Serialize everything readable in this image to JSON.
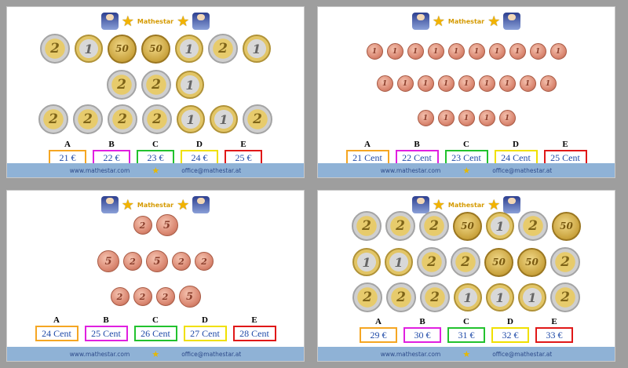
{
  "brand": "Mathestar",
  "footer": {
    "left": "www.mathestar.com",
    "right": "office@mathestar.at"
  },
  "colors": {
    "A": "#f5a623",
    "B": "#e020e0",
    "C": "#22c22e",
    "D": "#f0e000",
    "E": "#e01818",
    "footer": "#8fb2d6",
    "answer_text": "#1f4aa8"
  },
  "panels": [
    {
      "rows": [
        [
          {
            "t": "2"
          },
          {
            "t": "1"
          },
          {
            "t": "50"
          },
          {
            "t": "50"
          },
          {
            "t": "1"
          },
          {
            "t": "2"
          },
          {
            "t": "1"
          }
        ],
        [
          {
            "t": "2"
          },
          {
            "t": "2"
          },
          {
            "t": "1"
          }
        ],
        [
          {
            "t": "2"
          },
          {
            "t": "2"
          },
          {
            "t": "2"
          },
          {
            "t": "2"
          },
          {
            "t": "1"
          },
          {
            "t": "1"
          },
          {
            "t": "2"
          }
        ]
      ],
      "answers": [
        {
          "letter": "A",
          "value": "21 €"
        },
        {
          "letter": "B",
          "value": "22 €"
        },
        {
          "letter": "C",
          "value": "23 €"
        },
        {
          "letter": "D",
          "value": "24 €"
        },
        {
          "letter": "E",
          "value": "25 €"
        }
      ]
    },
    {
      "rows": [
        [
          {
            "t": "cu1"
          },
          {
            "t": "cu1"
          },
          {
            "t": "cu1"
          },
          {
            "t": "cu1"
          },
          {
            "t": "cu1"
          },
          {
            "t": "cu1"
          },
          {
            "t": "cu1"
          },
          {
            "t": "cu1"
          },
          {
            "t": "cu1"
          },
          {
            "t": "cu1"
          }
        ],
        [
          {
            "t": "cu1"
          },
          {
            "t": "cu1"
          },
          {
            "t": "cu1"
          },
          {
            "t": "cu1"
          },
          {
            "t": "cu1"
          },
          {
            "t": "cu1"
          },
          {
            "t": "cu1"
          },
          {
            "t": "cu1"
          },
          {
            "t": "cu1"
          }
        ],
        [
          {
            "t": "cu1"
          },
          {
            "t": "cu1"
          },
          {
            "t": "cu1"
          },
          {
            "t": "cu1"
          },
          {
            "t": "cu1"
          }
        ]
      ],
      "answers": [
        {
          "letter": "A",
          "value": "21 Cent"
        },
        {
          "letter": "B",
          "value": "22 Cent"
        },
        {
          "letter": "C",
          "value": "23 Cent"
        },
        {
          "letter": "D",
          "value": "24 Cent"
        },
        {
          "letter": "E",
          "value": "25 Cent"
        }
      ]
    },
    {
      "rows": [
        [
          {
            "t": "cu2"
          },
          {
            "t": "cu5"
          }
        ],
        [
          {
            "t": "cu5"
          },
          {
            "t": "cu2"
          },
          {
            "t": "cu5"
          },
          {
            "t": "cu2"
          },
          {
            "t": "cu2"
          }
        ],
        [
          {
            "t": "cu2"
          },
          {
            "t": "cu2"
          },
          {
            "t": "cu2"
          },
          {
            "t": "cu5"
          }
        ]
      ],
      "answers": [
        {
          "letter": "A",
          "value": "24 Cent"
        },
        {
          "letter": "B",
          "value": "25 Cent"
        },
        {
          "letter": "C",
          "value": "26 Cent"
        },
        {
          "letter": "D",
          "value": "27 Cent"
        },
        {
          "letter": "E",
          "value": "28 Cent"
        }
      ]
    },
    {
      "rows": [
        [
          {
            "t": "2"
          },
          {
            "t": "2"
          },
          {
            "t": "2"
          },
          {
            "t": "50"
          },
          {
            "t": "1"
          },
          {
            "t": "2"
          },
          {
            "t": "50"
          }
        ],
        [
          {
            "t": "1"
          },
          {
            "t": "1"
          },
          {
            "t": "2"
          },
          {
            "t": "2"
          },
          {
            "t": "50"
          },
          {
            "t": "50"
          },
          {
            "t": "2"
          }
        ],
        [
          {
            "t": "2"
          },
          {
            "t": "2"
          },
          {
            "t": "2"
          },
          {
            "t": "1"
          },
          {
            "t": "1"
          },
          {
            "t": "1"
          },
          {
            "t": "2"
          }
        ]
      ],
      "answers": [
        {
          "letter": "A",
          "value": "29 €"
        },
        {
          "letter": "B",
          "value": "30 €"
        },
        {
          "letter": "C",
          "value": "31 €"
        },
        {
          "letter": "D",
          "value": "32 €"
        },
        {
          "letter": "E",
          "value": "33 €"
        }
      ]
    }
  ]
}
